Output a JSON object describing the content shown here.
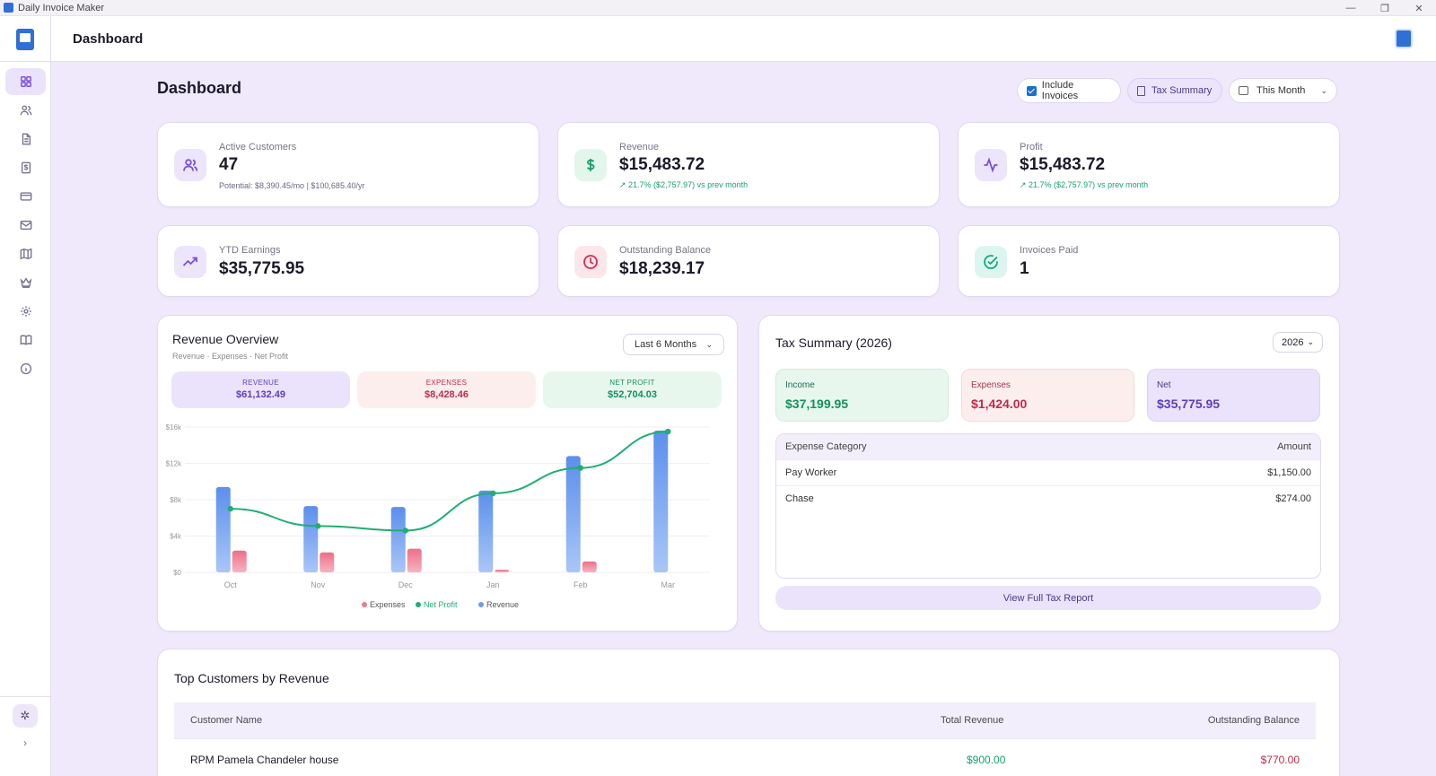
{
  "window": {
    "title": "Daily Invoice Maker",
    "controls": [
      "—",
      "❐",
      "✕"
    ]
  },
  "header": {
    "title": "Dashboard"
  },
  "sidebar": {
    "items": [
      {
        "name": "dashboard",
        "icon": "grid-icon",
        "active": true
      },
      {
        "name": "customers",
        "icon": "users-icon"
      },
      {
        "name": "invoices",
        "icon": "file-icon"
      },
      {
        "name": "payments",
        "icon": "dollar-doc-icon"
      },
      {
        "name": "cards",
        "icon": "credit-card-icon"
      },
      {
        "name": "mail",
        "icon": "mail-icon"
      },
      {
        "name": "map",
        "icon": "map-icon"
      },
      {
        "name": "premium",
        "icon": "crown-icon"
      },
      {
        "name": "settings",
        "icon": "gear-icon"
      },
      {
        "name": "guide",
        "icon": "book-icon"
      },
      {
        "name": "about",
        "icon": "info-icon"
      }
    ],
    "expand_label": "›"
  },
  "main": {
    "title": "Dashboard"
  },
  "controls": {
    "include_invoices": "Include Invoices",
    "tax_summary": "Tax Summary",
    "period": "This Month"
  },
  "stats": {
    "active_customers": {
      "label": "Active Customers",
      "value": "47",
      "sub": "Potential: $8,390.45/mo | $100,685.40/yr"
    },
    "revenue": {
      "label": "Revenue",
      "value": "$15,483.72",
      "trend": "↗ 21.7% ($2,757.97) vs prev month"
    },
    "profit": {
      "label": "Profit",
      "value": "$15,483.72",
      "trend": "↗ 21.7% ($2,757.97) vs prev month"
    },
    "ytd": {
      "label": "YTD Earnings",
      "value": "$35,775.95"
    },
    "outstanding": {
      "label": "Outstanding Balance",
      "value": "$18,239.17"
    },
    "invoices_paid": {
      "label": "Invoices Paid",
      "value": "1"
    }
  },
  "revenue_overview": {
    "title": "Revenue Overview",
    "subtitle": "Revenue · Expenses · Net Profit",
    "range": "Last 6 Months",
    "pills": {
      "revenue": {
        "label": "REVENUE",
        "value": "$61,132.49"
      },
      "expenses": {
        "label": "EXPENSES",
        "value": "$8,428.46"
      },
      "net": {
        "label": "NET PROFIT",
        "value": "$52,704.03"
      }
    }
  },
  "chart_data": {
    "type": "bar",
    "categories": [
      "Oct",
      "Nov",
      "Dec",
      "Jan",
      "Feb",
      "Mar"
    ],
    "series": [
      {
        "name": "Revenue",
        "values": [
          9400,
          7300,
          7200,
          9000,
          12800,
          15600
        ],
        "color": "#6a9cf0"
      },
      {
        "name": "Expenses",
        "values": [
          2400,
          2200,
          2600,
          300,
          1200,
          0
        ],
        "color": "#f07a92"
      },
      {
        "name": "Net Profit",
        "values": [
          7000,
          5100,
          4600,
          8700,
          11500,
          15500
        ],
        "color": "#1fae74",
        "kind": "line"
      }
    ],
    "yticks": [
      "$0",
      "$4k",
      "$8k",
      "$12k",
      "$16k"
    ],
    "ylim": [
      0,
      16000
    ],
    "legend": [
      "Expenses",
      "Net Profit",
      "Revenue"
    ],
    "legend_position": "bottom"
  },
  "tax_summary": {
    "title": "Tax Summary (2026)",
    "year": "2026",
    "income": {
      "label": "Income",
      "value": "$37,199.95"
    },
    "expenses": {
      "label": "Expenses",
      "value": "$1,424.00"
    },
    "net": {
      "label": "Net",
      "value": "$35,775.95"
    },
    "table": {
      "headers": [
        "Expense Category",
        "Amount"
      ],
      "rows": [
        {
          "category": "Pay Worker",
          "amount": "$1,150.00"
        },
        {
          "category": "Chase",
          "amount": "$274.00"
        }
      ]
    },
    "button": "View Full Tax Report"
  },
  "top_customers": {
    "title": "Top Customers by Revenue",
    "headers": [
      "Customer Name",
      "Total Revenue",
      "Outstanding Balance"
    ],
    "rows": [
      {
        "name": "RPM Pamela Chandeler house",
        "revenue": "$900.00",
        "outstanding": "$770.00"
      }
    ]
  },
  "colors": {
    "accent": "#7b4fe0",
    "positive": "#17a06a",
    "negative": "#c02a4a"
  }
}
